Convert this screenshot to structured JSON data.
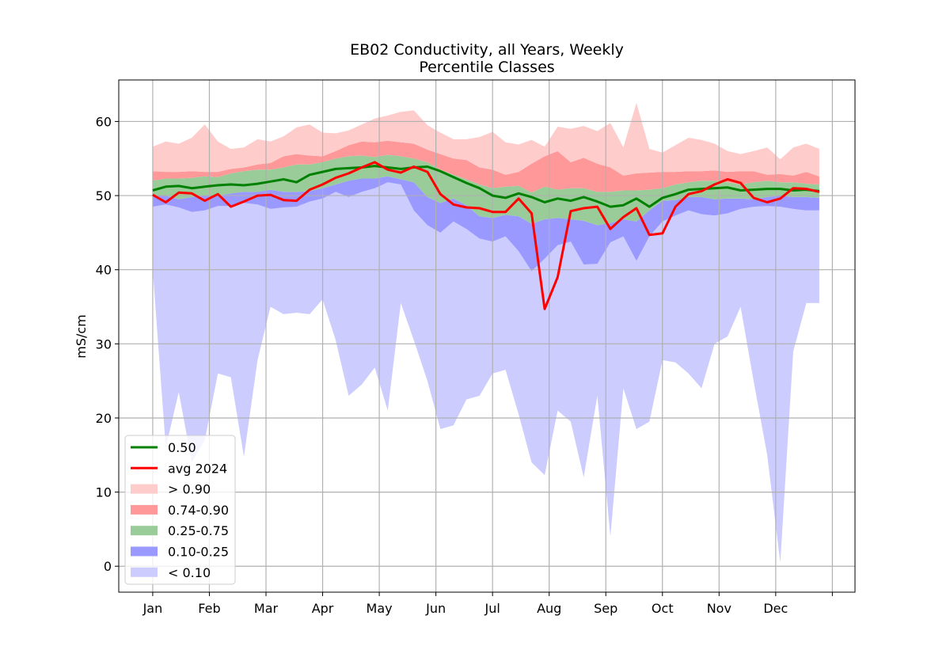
{
  "chart_data": {
    "type": "area",
    "title": "EB02 Conductivity, all Years, Weekly",
    "subtitle": "Percentile Classes",
    "xlabel": "",
    "ylabel": "mS/cm",
    "ylim": [
      -3.5,
      65.6
    ],
    "yticks": [
      0,
      10,
      20,
      30,
      40,
      50,
      60
    ],
    "grid": true,
    "legend_position": "lower-left",
    "xlim": [
      -0.6,
      12.4
    ],
    "xticks": [
      {
        "pos": 0,
        "label": "Jan"
      },
      {
        "pos": 1,
        "label": "Feb"
      },
      {
        "pos": 2,
        "label": "Mar"
      },
      {
        "pos": 3,
        "label": "Apr"
      },
      {
        "pos": 4,
        "label": "May"
      },
      {
        "pos": 5,
        "label": "Jun"
      },
      {
        "pos": 6,
        "label": "Jul"
      },
      {
        "pos": 7,
        "label": "Aug"
      },
      {
        "pos": 8,
        "label": "Sep"
      },
      {
        "pos": 9,
        "label": "Oct"
      },
      {
        "pos": 10,
        "label": "Nov"
      },
      {
        "pos": 11,
        "label": "Dec"
      },
      {
        "pos": 12,
        "label": ""
      }
    ],
    "colors": {
      "median": "#008000",
      "avg": "#ff0000",
      "band_gt90": "#ffcccc",
      "band_74_90": "#ff9999",
      "band_25_75": "#99cc99",
      "band_10_25": "#9999ff",
      "band_lt10": "#ccccff"
    },
    "weeks": [
      0,
      0.23,
      0.46,
      0.69,
      0.92,
      1.15,
      1.38,
      1.61,
      1.85,
      2.08,
      2.31,
      2.54,
      2.77,
      3.0,
      3.23,
      3.46,
      3.69,
      3.92,
      4.15,
      4.38,
      4.61,
      4.85,
      5.08,
      5.31,
      5.54,
      5.77,
      6.0,
      6.23,
      6.46,
      6.69,
      6.92,
      7.15,
      7.38,
      7.61,
      7.85,
      8.08,
      8.31,
      8.54,
      8.77,
      9.0,
      9.23,
      9.46,
      9.69,
      9.92,
      10.15,
      10.38,
      10.61,
      10.85,
      11.08,
      11.31,
      11.54,
      11.77
    ],
    "p_min": [
      40,
      16,
      23.5,
      14,
      17,
      26,
      25.5,
      14.8,
      27.8,
      35,
      34,
      34.2,
      34,
      36,
      30.5,
      23,
      24.5,
      26.8,
      21,
      35.5,
      30.5,
      25,
      18.5,
      19,
      22.5,
      23,
      26,
      26.5,
      20.5,
      14,
      12.3,
      21,
      19.5,
      12,
      23,
      4,
      24,
      18.5,
      19.5,
      27.8,
      27.5,
      26,
      24,
      30,
      31,
      35,
      25,
      15,
      0.5,
      29,
      35.5,
      35.5
    ],
    "p10": [
      48.5,
      48.8,
      48.4,
      47.8,
      48,
      48.6,
      48.6,
      49,
      48.8,
      48.2,
      48.4,
      48.5,
      49.2,
      49.6,
      50.5,
      49.8,
      50.5,
      51,
      51.8,
      51.5,
      48,
      46,
      45,
      46.5,
      45.5,
      44.2,
      43.8,
      44.5,
      42.5,
      39.8,
      41.5,
      43.3,
      43.8,
      40.7,
      40.8,
      43.7,
      44.5,
      41.2,
      44.5,
      46.5,
      47.3,
      48,
      47.5,
      47.3,
      47.6,
      48.2,
      48.5,
      48.6,
      48.5,
      48.2,
      48,
      48
    ],
    "p25": [
      50,
      50,
      49.5,
      49.8,
      50,
      50,
      50.3,
      50.5,
      50.5,
      50.8,
      50.5,
      50.5,
      50.6,
      51,
      51.5,
      52,
      52.3,
      52.3,
      52.6,
      52.2,
      51.8,
      49.8,
      49,
      49.6,
      48.7,
      47.2,
      47,
      47.4,
      47.2,
      46.2,
      46.8,
      47,
      46.8,
      46.6,
      46,
      46.3,
      46.8,
      46.5,
      48,
      49.3,
      49.4,
      49.8,
      49.8,
      49.5,
      49.6,
      49.6,
      49.5,
      49.8,
      50,
      49.8,
      49.8,
      49.7
    ],
    "p75": [
      52,
      52.3,
      52.3,
      52.4,
      52.6,
      52.5,
      53,
      53.3,
      53.5,
      53.5,
      53.8,
      54.2,
      54.2,
      54.5,
      55,
      55.3,
      55.4,
      55.2,
      55.5,
      55.3,
      55,
      54.5,
      53.5,
      52.8,
      52.2,
      51.5,
      51,
      51.2,
      51.3,
      50.4,
      51.2,
      50.8,
      51,
      51,
      50.5,
      50.5,
      50.7,
      50.7,
      50.8,
      51,
      51.5,
      51.8,
      52,
      52,
      51.8,
      51.5,
      51.8,
      52,
      51.8,
      51.8,
      51.6,
      51.5
    ],
    "p90": [
      53.3,
      53.2,
      53.2,
      53.3,
      53.2,
      53.2,
      53.6,
      53.8,
      54.2,
      54.4,
      55.3,
      55.6,
      55.4,
      55.3,
      56,
      56.8,
      57.3,
      57.2,
      57.4,
      57.2,
      57,
      56.2,
      55.6,
      55,
      54.8,
      53.8,
      53.5,
      52.8,
      53.2,
      54.3,
      55.3,
      56,
      54.5,
      55.1,
      54.3,
      53.8,
      52.7,
      53,
      53.1,
      53.2,
      53.2,
      53.3,
      53.3,
      53.4,
      53.2,
      53.3,
      53.3,
      52.8,
      52.9,
      52.7,
      53.2,
      52.6
    ],
    "p_max": [
      56.6,
      57.3,
      57,
      57.8,
      59.6,
      57.3,
      56.3,
      56.5,
      57.6,
      57.3,
      58,
      59.2,
      59.6,
      58.5,
      58.4,
      58.8,
      59.6,
      60.4,
      60.8,
      61.3,
      61.5,
      59.5,
      58.5,
      57.6,
      57.6,
      57.9,
      58.6,
      57.2,
      56.9,
      57.5,
      56.6,
      59.3,
      59,
      59.4,
      58.7,
      59.8,
      56.5,
      62.5,
      56.3,
      55.8,
      56.8,
      57.8,
      57.5,
      57,
      56,
      55.6,
      56,
      56.5,
      54.9,
      56.5,
      57,
      56.3
    ],
    "median": [
      50.7,
      51.2,
      51.3,
      51,
      51.2,
      51.4,
      51.5,
      51.4,
      51.6,
      51.9,
      52.2,
      51.8,
      52.8,
      53.2,
      53.6,
      53.7,
      53.8,
      54,
      53.8,
      53.6,
      53.8,
      53.9,
      53.3,
      52.5,
      51.7,
      51,
      50,
      49.7,
      50.3,
      49.8,
      49.1,
      49.6,
      49.3,
      49.8,
      49.2,
      48.5,
      48.7,
      49.6,
      48.5,
      49.7,
      50.2,
      50.8,
      50.9,
      51,
      51.1,
      50.7,
      50.8,
      50.9,
      50.9,
      50.7,
      50.8,
      50.6
    ],
    "avg_2024": [
      50.1,
      49.1,
      50.4,
      50.3,
      49.3,
      50.2,
      48.5,
      49.2,
      50,
      50.1,
      49.4,
      49.3,
      50.8,
      51.5,
      52.4,
      53,
      53.8,
      54.5,
      53.5,
      53.1,
      53.9,
      53.2,
      50.2,
      48.8,
      48.4,
      48.3,
      47.8,
      47.8,
      49.6,
      47.6,
      34.7,
      39,
      47.9,
      48.3,
      48.5,
      45.5,
      47.1,
      48.3,
      44.7,
      44.9,
      48.5,
      50.2,
      50.6,
      51.5,
      52.2,
      51.7,
      49.7,
      49.1,
      49.6,
      51,
      50.9,
      50.5
    ]
  },
  "legend": [
    {
      "key": "median",
      "label": "0.50",
      "kind": "line"
    },
    {
      "key": "avg",
      "label": "avg 2024",
      "kind": "line"
    },
    {
      "key": "band_gt90",
      "label": "> 0.90",
      "kind": "patch"
    },
    {
      "key": "band_74_90",
      "label": "0.74-0.90",
      "kind": "patch"
    },
    {
      "key": "band_25_75",
      "label": "0.25-0.75",
      "kind": "patch"
    },
    {
      "key": "band_10_25",
      "label": "0.10-0.25",
      "kind": "patch"
    },
    {
      "key": "band_lt10",
      "label": "< 0.10",
      "kind": "patch"
    }
  ]
}
